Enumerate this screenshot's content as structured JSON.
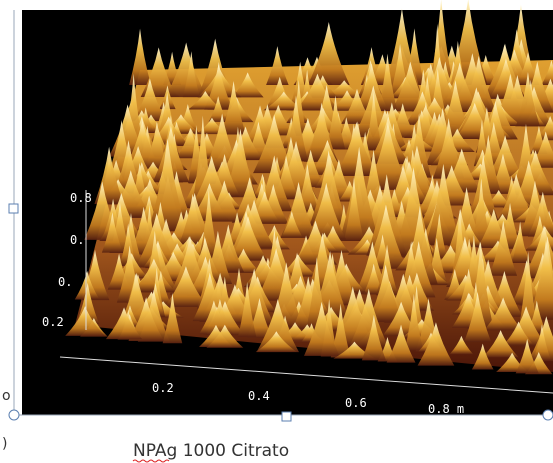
{
  "image": {
    "axis_labels": {
      "vertical": [
        "0.8",
        "0.",
        "0.",
        "0.2"
      ],
      "horizontal": [
        "0.2",
        "0.4",
        "0.6",
        "0.8 m"
      ]
    }
  },
  "caption": "NPAg 1000 Citrato",
  "margin_fragments": [
    "o",
    ")"
  ]
}
